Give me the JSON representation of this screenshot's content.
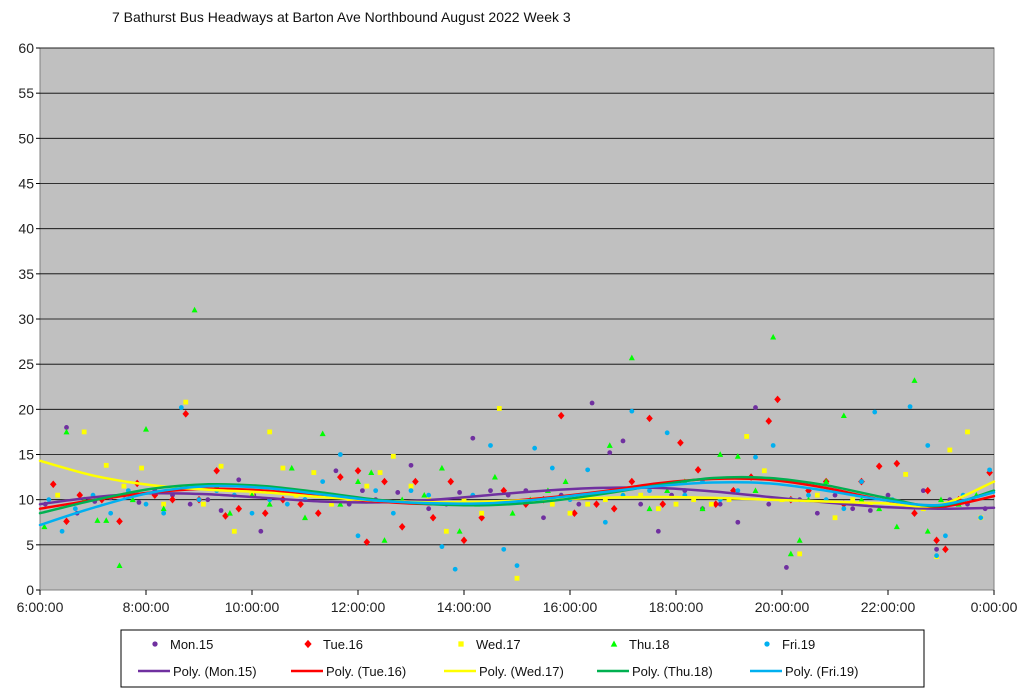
{
  "chart_data": {
    "type": "scatter",
    "title": "7 Bathurst Bus Headways at Barton Ave Northbound August 2022  Week 3",
    "xlabel": "",
    "ylabel": "",
    "xlim": [
      "6:00:00",
      "0:00:00"
    ],
    "ylim": [
      0,
      60
    ],
    "yticks": [
      "0",
      "5",
      "10",
      "15",
      "20",
      "25",
      "30",
      "35",
      "40",
      "45",
      "50",
      "55",
      "60"
    ],
    "xticks": [
      "6:00:00",
      "8:00:00",
      "10:00:00",
      "12:00:00",
      "14:00:00",
      "16:00:00",
      "18:00:00",
      "20:00:00",
      "22:00:00",
      "0:00:00"
    ],
    "grid": "horizontal",
    "legend_position": "bottom",
    "plot_background": "#c0c0c0",
    "series": [
      {
        "name": "Mon.15",
        "marker": "circle",
        "color": "#7030a0",
        "x": [
          "6:06",
          "6:30",
          "6:42",
          "7:02",
          "7:20",
          "7:35",
          "7:52",
          "8:10",
          "8:30",
          "8:50",
          "9:10",
          "9:25",
          "9:45",
          "10:02",
          "10:10",
          "10:20",
          "10:40",
          "11:00",
          "11:20",
          "11:35",
          "11:50",
          "12:05",
          "12:20",
          "12:45",
          "13:00",
          "13:20",
          "13:40",
          "13:55",
          "14:10",
          "14:30",
          "14:50",
          "15:10",
          "15:30",
          "15:50",
          "16:10",
          "16:25",
          "16:45",
          "17:00",
          "17:20",
          "17:40",
          "17:55",
          "18:10",
          "18:30",
          "18:50",
          "19:10",
          "19:30",
          "19:45",
          "20:05",
          "20:20",
          "20:40",
          "21:00",
          "21:20",
          "21:40",
          "22:00",
          "22:20",
          "22:40",
          "22:55",
          "23:10",
          "23:30",
          "23:50"
        ],
        "y": [
          9.5,
          18,
          8.5,
          9.8,
          10.2,
          10.5,
          9.7,
          11,
          10.5,
          9.5,
          10,
          8.8,
          12.2,
          10.5,
          6.5,
          10,
          11,
          10,
          10.5,
          13.2,
          9.5,
          11,
          10,
          10.8,
          13.8,
          9,
          9.5,
          10.8,
          16.8,
          11,
          10.5,
          11,
          8,
          10.5,
          9.5,
          20.7,
          15.2,
          16.5,
          9.5,
          6.5,
          10.5,
          11,
          9,
          9.5,
          7.5,
          20.2,
          9.5,
          2.5,
          10,
          8.5,
          10.5,
          9,
          8.8,
          10.5,
          9.5,
          11,
          4.5,
          10,
          9.5,
          9
        ]
      },
      {
        "name": "Tue.16",
        "marker": "diamond",
        "color": "#ff0000",
        "x": [
          "6:15",
          "6:30",
          "6:45",
          "7:10",
          "7:30",
          "7:50",
          "8:10",
          "8:30",
          "8:45",
          "9:00",
          "9:20",
          "9:30",
          "9:45",
          "10:15",
          "10:35",
          "10:55",
          "11:15",
          "11:40",
          "12:00",
          "12:10",
          "12:30",
          "12:50",
          "13:05",
          "13:25",
          "13:45",
          "14:00",
          "14:20",
          "14:45",
          "15:10",
          "15:30",
          "15:50",
          "16:05",
          "16:30",
          "16:50",
          "17:10",
          "17:30",
          "17:45",
          "18:05",
          "18:25",
          "18:45",
          "19:05",
          "19:25",
          "19:45",
          "19:55",
          "20:10",
          "20:30",
          "20:50",
          "21:10",
          "21:30",
          "21:50",
          "22:10",
          "22:30",
          "22:45",
          "22:55",
          "23:05",
          "23:20",
          "23:55"
        ],
        "y": [
          11.7,
          7.6,
          10.5,
          10,
          7.6,
          11.8,
          10.5,
          10,
          19.5,
          10,
          13.2,
          8.2,
          9,
          8.5,
          10,
          9.5,
          8.5,
          12.5,
          13.2,
          5.3,
          12,
          7,
          12,
          8,
          12,
          5.5,
          8,
          11,
          9.5,
          10,
          19.3,
          8.5,
          9.5,
          9,
          12,
          19,
          9.5,
          16.3,
          13.3,
          9.5,
          11,
          12.5,
          18.7,
          21.1,
          10,
          11,
          12,
          9.5,
          12,
          13.7,
          14,
          8.5,
          11,
          5.5,
          4.5,
          10,
          13
        ]
      },
      {
        "name": "Wed.17",
        "marker": "square",
        "color": "#ffff00",
        "x": [
          "6:20",
          "6:50",
          "7:15",
          "7:35",
          "7:55",
          "8:20",
          "8:45",
          "9:05",
          "9:25",
          "9:40",
          "10:00",
          "10:20",
          "10:35",
          "10:50",
          "11:10",
          "11:30",
          "11:50",
          "12:10",
          "12:25",
          "12:40",
          "13:00",
          "13:20",
          "13:40",
          "14:00",
          "14:20",
          "14:40",
          "15:00",
          "15:20",
          "15:40",
          "16:00",
          "16:20",
          "16:40",
          "17:00",
          "17:20",
          "17:40",
          "18:00",
          "18:20",
          "18:40",
          "19:00",
          "19:20",
          "19:40",
          "20:00",
          "20:20",
          "20:40",
          "21:00",
          "21:20",
          "21:40",
          "22:00",
          "22:20",
          "22:40",
          "22:55",
          "23:10",
          "23:30",
          "23:45"
        ],
        "y": [
          10.5,
          17.5,
          13.8,
          11.5,
          13.5,
          9.5,
          20.8,
          9.5,
          13.7,
          6.5,
          10.5,
          17.5,
          13.5,
          10.5,
          13,
          9.5,
          10,
          11.5,
          13,
          14.8,
          11.5,
          10,
          6.5,
          10,
          8.5,
          20.1,
          1.3,
          10,
          9.5,
          8.5,
          9.5,
          10,
          10.5,
          10.5,
          9,
          9.5,
          10,
          9.5,
          10,
          17,
          13.2,
          10,
          4,
          10.5,
          8,
          10,
          9.5,
          10,
          12.8,
          9,
          3.7,
          15.5,
          17.5,
          8
        ]
      },
      {
        "name": "Thu.18",
        "marker": "triangle",
        "color": "#00ff00",
        "x": [
          "6:05",
          "6:30",
          "6:50",
          "7:05",
          "7:15",
          "7:30",
          "7:45",
          "8:00",
          "8:20",
          "8:55",
          "9:20",
          "9:35",
          "10:00",
          "10:20",
          "10:45",
          "11:00",
          "11:20",
          "11:40",
          "12:00",
          "12:15",
          "12:30",
          "12:50",
          "13:15",
          "13:35",
          "13:55",
          "14:15",
          "14:35",
          "14:55",
          "15:15",
          "15:35",
          "15:55",
          "16:20",
          "16:45",
          "17:10",
          "17:30",
          "17:50",
          "18:10",
          "18:30",
          "18:50",
          "19:10",
          "19:30",
          "19:50",
          "20:10",
          "20:20",
          "20:30",
          "20:50",
          "21:10",
          "21:30",
          "21:50",
          "22:10",
          "22:30",
          "22:45",
          "23:00",
          "23:20",
          "23:40"
        ],
        "y": [
          7,
          17.5,
          10,
          7.7,
          7.7,
          2.7,
          10,
          17.8,
          9,
          31,
          11.5,
          8.5,
          10.5,
          9.5,
          13.5,
          8,
          17.3,
          9.5,
          12,
          13,
          5.5,
          10,
          10.5,
          13.5,
          6.5,
          9.5,
          12.5,
          8.5,
          10,
          11,
          12,
          10.5,
          16,
          25.7,
          9,
          11,
          12,
          9,
          15,
          14.8,
          11,
          28,
          4,
          5.5,
          10,
          12,
          19.3,
          10,
          9,
          7,
          23.2,
          6.5,
          10,
          9.5,
          10.5
        ]
      },
      {
        "name": "Fri.19",
        "marker": "circle",
        "color": "#00b0f0",
        "x": [
          "6:10",
          "6:25",
          "6:40",
          "7:00",
          "7:20",
          "7:40",
          "8:00",
          "8:20",
          "8:40",
          "9:00",
          "9:20",
          "9:40",
          "10:00",
          "10:20",
          "10:40",
          "11:00",
          "11:20",
          "11:40",
          "12:00",
          "12:20",
          "12:40",
          "13:00",
          "13:20",
          "13:35",
          "13:50",
          "14:10",
          "14:30",
          "14:45",
          "15:00",
          "15:20",
          "15:40",
          "16:00",
          "16:20",
          "16:40",
          "17:00",
          "17:10",
          "17:30",
          "17:50",
          "18:10",
          "18:30",
          "18:50",
          "19:10",
          "19:30",
          "19:50",
          "20:10",
          "20:30",
          "20:50",
          "21:10",
          "21:30",
          "21:45",
          "22:05",
          "22:25",
          "22:45",
          "22:55",
          "23:05",
          "23:25",
          "23:45",
          "23:55"
        ],
        "y": [
          10,
          6.5,
          9,
          10.5,
          8.5,
          11,
          9.5,
          8.5,
          20.2,
          10,
          11,
          10.5,
          8.5,
          10,
          9.5,
          10,
          12,
          15,
          6,
          11,
          8.5,
          11,
          10.5,
          4.8,
          2.3,
          10.5,
          16,
          4.5,
          2.7,
          15.7,
          13.5,
          10,
          13.3,
          7.5,
          10.5,
          19.8,
          11,
          17.4,
          10.5,
          12,
          10,
          11,
          14.7,
          16,
          10,
          10.5,
          10,
          9,
          12,
          19.7,
          10,
          20.3,
          16,
          3.8,
          6,
          10.5,
          8,
          13.3
        ]
      }
    ],
    "trendlines": [
      {
        "name": "Poly. (Mon.15)",
        "color": "#7030a0",
        "type": "polynomial",
        "y": [
          9.5,
          10.3,
          10.7,
          10.6,
          10.2,
          9.8,
          9.7,
          10,
          10.5,
          11,
          11.3,
          11.3,
          10.9,
          10.3,
          9.7,
          9.2,
          9,
          9.1
        ]
      },
      {
        "name": "Poly. (Tue.16)",
        "color": "#ff0000",
        "type": "polynomial",
        "y": [
          9,
          10,
          10.8,
          11.2,
          11,
          10.4,
          9.8,
          9.5,
          9.7,
          10.2,
          10.9,
          11.8,
          12.3,
          12.2,
          11.3,
          10,
          9.2,
          10.4
        ]
      },
      {
        "name": "Poly. (Wed.17)",
        "color": "#ffff00",
        "type": "polynomial",
        "y": [
          14.3,
          12.6,
          11.6,
          11.1,
          10.8,
          10.3,
          9.9,
          9.7,
          9.8,
          10,
          10.2,
          10.3,
          10.2,
          10,
          9.8,
          9.6,
          9.4,
          12
        ]
      },
      {
        "name": "Poly. (Thu.18)",
        "color": "#00b050",
        "type": "polynomial",
        "y": [
          8.5,
          10,
          11.2,
          11.7,
          11.5,
          10.8,
          10,
          9.5,
          9.4,
          9.8,
          10.6,
          11.6,
          12.4,
          12.4,
          11.6,
          10.3,
          9.3,
          11
        ]
      },
      {
        "name": "Poly. (Fri.19)",
        "color": "#00b0f0",
        "type": "polynomial",
        "y": [
          7.2,
          9.2,
          10.8,
          11.5,
          11.3,
          10.6,
          9.9,
          9.6,
          9.6,
          10.1,
          10.8,
          11.5,
          11.9,
          11.8,
          11,
          10,
          9.4,
          10.8
        ]
      }
    ]
  }
}
